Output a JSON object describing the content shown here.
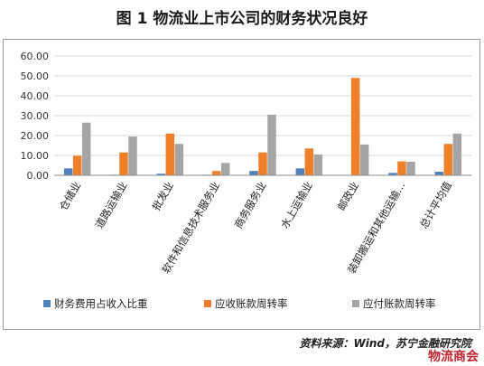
{
  "title": "图 1  物流业上市公司的财务状况良好",
  "source": "资料来源：Wind，苏宁金融研究院",
  "watermark": "物流商会",
  "colors": {
    "series": [
      "#4f81bd",
      "#f07f2a",
      "#a5a5a5"
    ],
    "grid": "#d9d9d9",
    "axis": "#8c8c8c"
  },
  "chart_data": {
    "type": "bar",
    "title": "",
    "xlabel": "",
    "ylabel": "",
    "ylim": [
      0,
      60
    ],
    "yticks": [
      "0.00",
      "10.00",
      "20.00",
      "30.00",
      "40.00",
      "50.00",
      "60.00"
    ],
    "grid": true,
    "legend_position": "bottom",
    "categories": [
      "仓储业",
      "道路运输业",
      "批发业",
      "软件和信息技术服务业",
      "商务服务业",
      "水上运输业",
      "邮政业",
      "装卸搬运和其他运输…",
      "总计平均值"
    ],
    "series": [
      {
        "name": "财务费用占收入比重",
        "values": [
          3.5,
          0.3,
          0.8,
          0.3,
          2.2,
          3.5,
          0.0,
          1.2,
          1.8
        ]
      },
      {
        "name": "应收账款周转率",
        "values": [
          9.8,
          11.5,
          21.0,
          2.2,
          11.5,
          13.5,
          49.0,
          7.0,
          15.8
        ]
      },
      {
        "name": "应付账款周转率",
        "values": [
          26.5,
          19.5,
          15.8,
          6.2,
          30.5,
          10.5,
          15.5,
          6.8,
          21.0
        ]
      }
    ]
  }
}
